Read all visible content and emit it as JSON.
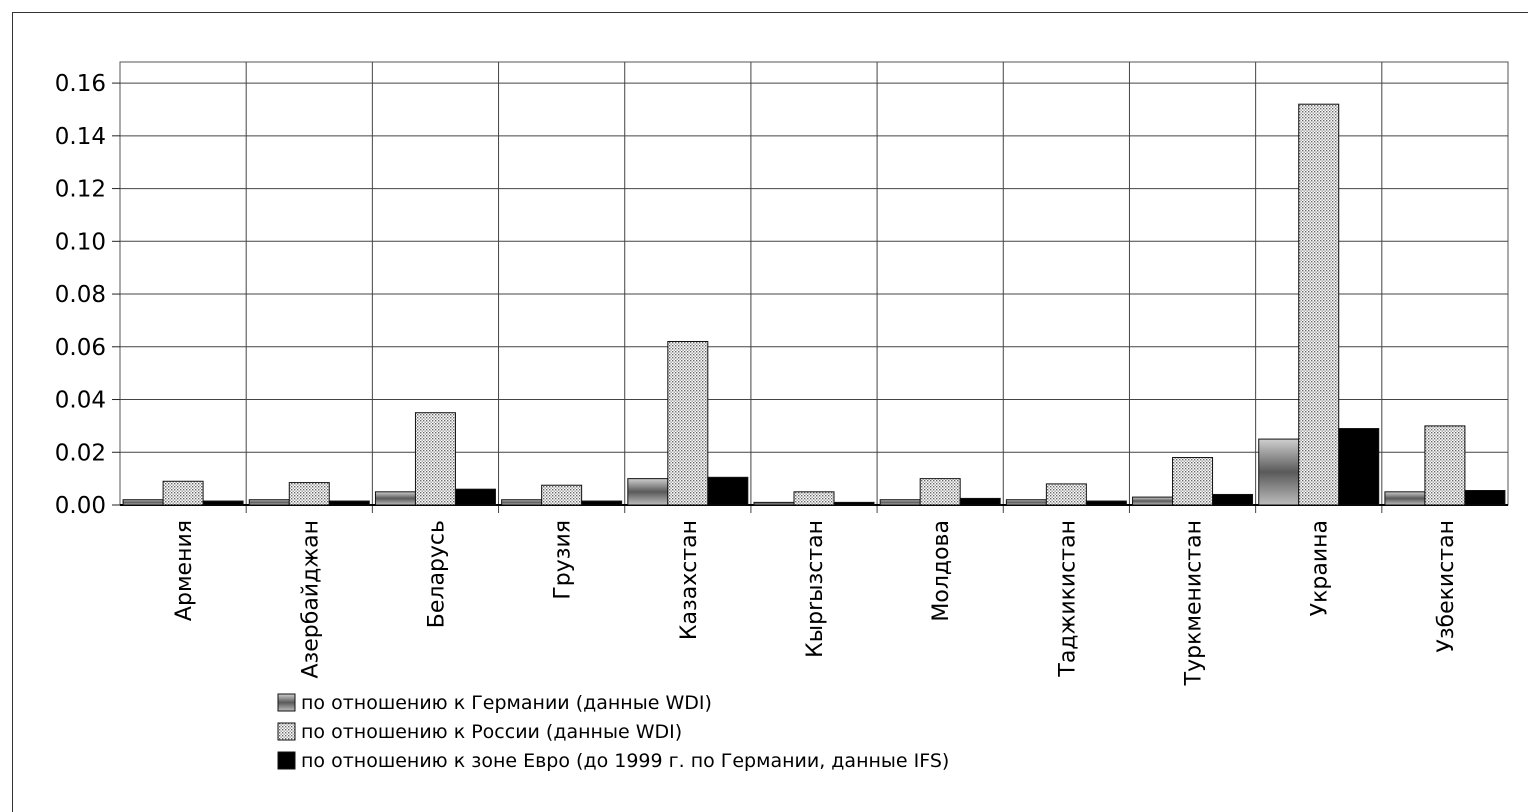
{
  "chart_data": {
    "type": "bar",
    "categories": [
      "Армения",
      "Азербайджан",
      "Беларусь",
      "Грузия",
      "Казахстан",
      "Кырrызстан",
      "Молдова",
      "Таджикистан",
      "Туркменистан",
      "Украина",
      "Узбекистан"
    ],
    "series": [
      {
        "name": "по отношению к Германии (данные WDI)",
        "values": [
          0.002,
          0.002,
          0.005,
          0.002,
          0.01,
          0.001,
          0.002,
          0.002,
          0.003,
          0.025,
          0.005
        ]
      },
      {
        "name": "по отношению к России (данные WDI)",
        "values": [
          0.009,
          0.0085,
          0.035,
          0.0075,
          0.062,
          0.005,
          0.01,
          0.008,
          0.018,
          0.152,
          0.03
        ]
      },
      {
        "name": "по отношению к зоне Евро (до 1999 г. по Германии, данные IFS)",
        "values": [
          0.0015,
          0.0015,
          0.006,
          0.0015,
          0.0105,
          0.001,
          0.0025,
          0.0015,
          0.004,
          0.029,
          0.0055
        ]
      }
    ],
    "y_ticks": [
      "0.00",
      "0.02",
      "0.04",
      "0.06",
      "0.08",
      "0.10",
      "0.12",
      "0.14",
      "0.16"
    ],
    "ylim": [
      0,
      0.168
    ],
    "grid": true,
    "legend_position": "bottom",
    "colors": {
      "germany": "#8c8c8c",
      "russia": "#dcdcdc",
      "euro": "#000000"
    }
  }
}
